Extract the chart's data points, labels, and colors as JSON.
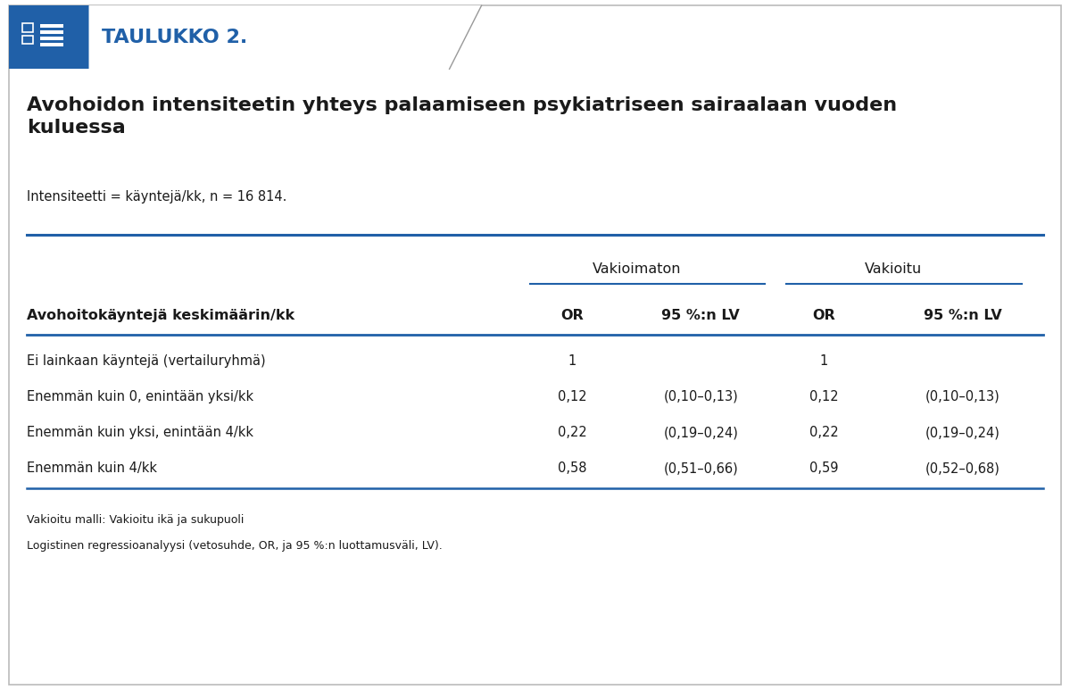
{
  "title_label": "TAULUKKO 2.",
  "main_title": "Avohoidon intensiteetin yhteys palaamiseen psykiatriseen sairaalaan vuoden\nkuluessa",
  "subtitle": "Intensiteetti = käyntejä/kk, n = 16 814.",
  "group_header_1": "Vakioimaton",
  "group_header_2": "Vakioitu",
  "col_headers": [
    "Avohoitokäyntejä keskimäärin/kk",
    "OR",
    "95 %:n LV",
    "OR",
    "95 %:n LV"
  ],
  "rows": [
    [
      "Ei lainkaan käyntejä (vertailuryhmä)",
      "1",
      "",
      "1",
      ""
    ],
    [
      "Enemmän kuin 0, enintään yksi/kk",
      "0,12",
      "(0,10–0,13)",
      "0,12",
      "(0,10–0,13)"
    ],
    [
      "Enemmän kuin yksi, enintään 4/kk",
      "0,22",
      "(0,19–0,24)",
      "0,22",
      "(0,19–0,24)"
    ],
    [
      "Enemmän kuin 4/kk",
      "0,58",
      "(0,51–0,66)",
      "0,59",
      "(0,52–0,68)"
    ]
  ],
  "footnotes": [
    "Vakioitu malli: Vakioitu ikä ja sukupuoli",
    "Logistinen regressioanalyysi (vetosuhde, OR, ja 95 %:n luottamusväli, LV)."
  ],
  "header_bg_color": "#2060a8",
  "header_text_color": "#2060a8",
  "border_color": "#2060a8",
  "background_color": "#ffffff",
  "outer_border_color": "#bbbbbb",
  "text_color": "#1a1a1a"
}
